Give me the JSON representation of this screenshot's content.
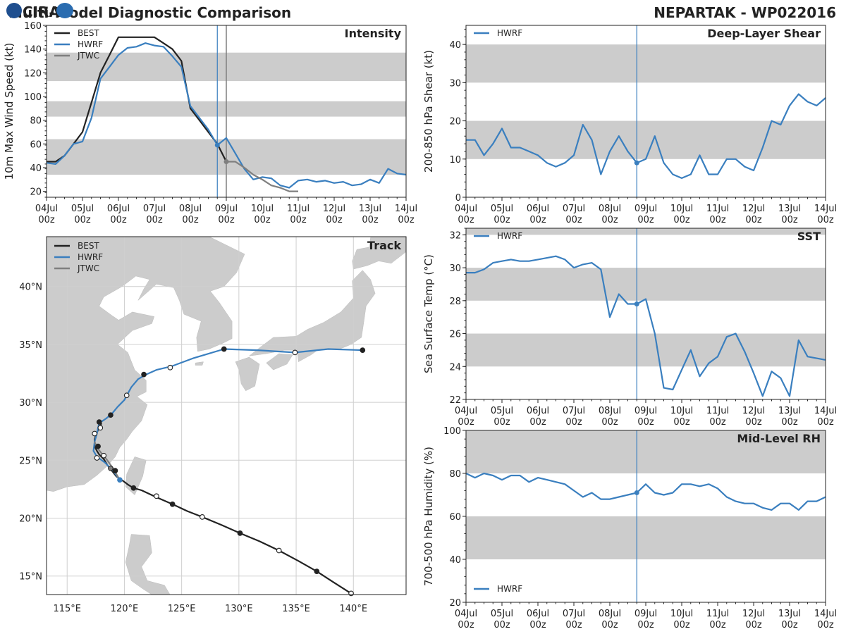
{
  "header": {
    "title_left": "Multi-Model Diagnostic Comparison",
    "title_right": "NEPARTAK - WP022016"
  },
  "logo": {
    "text": "CIRA"
  },
  "colors": {
    "best": "#222222",
    "hwrf": "#3a7fbf",
    "jtwc": "#7f7f7f",
    "band": "#cccccc",
    "grid": "#cfcfcf"
  },
  "time_axis": {
    "labels": [
      "04Jul\n00z",
      "05Jul\n00z",
      "06Jul\n00z",
      "07Jul\n00z",
      "08Jul\n00z",
      "09Jul\n00z",
      "10Jul\n00z",
      "11Jul\n00z",
      "12Jul\n00z",
      "13Jul\n00z",
      "14Jul\n00z"
    ],
    "range_days": [
      0,
      10
    ],
    "current_time_day": 4.75,
    "jtwc_time_day": 5.0
  },
  "chart_data": [
    {
      "id": "intensity",
      "type": "line",
      "title": "Intensity",
      "ylabel": "10m Max Wind Speed (kt)",
      "ylim": [
        15,
        160
      ],
      "yticks": [
        20,
        40,
        60,
        80,
        100,
        120,
        140,
        160
      ],
      "bands": [
        [
          34,
          64
        ],
        [
          83,
          96
        ],
        [
          113,
          137
        ]
      ],
      "legend": [
        "BEST",
        "HWRF",
        "JTWC"
      ],
      "series": [
        {
          "name": "BEST",
          "x": [
            0,
            0.25,
            0.5,
            0.75,
            1,
            1.25,
            1.5,
            1.75,
            2,
            2.25,
            2.5,
            2.75,
            3,
            3.25,
            3.5,
            3.75,
            4,
            4.25,
            4.5,
            4.75,
            5
          ],
          "y": [
            45,
            45,
            50,
            60,
            70,
            95,
            120,
            135,
            150,
            150,
            150,
            150,
            150,
            145,
            140,
            130,
            90,
            80,
            70,
            60,
            45
          ]
        },
        {
          "name": "HWRF",
          "x": [
            0,
            0.25,
            0.5,
            0.75,
            1,
            1.25,
            1.5,
            1.75,
            2,
            2.25,
            2.5,
            2.75,
            3,
            3.25,
            3.5,
            3.75,
            4,
            4.25,
            4.5,
            4.75,
            5,
            5.25,
            5.5,
            5.75,
            6,
            6.25,
            6.5,
            6.75,
            7,
            7.25,
            7.5,
            7.75,
            8,
            8.25,
            8.5,
            8.75,
            9,
            9.25,
            9.5,
            9.75,
            10
          ],
          "y": [
            44,
            43,
            50,
            60,
            62,
            82,
            115,
            125,
            135,
            141,
            142,
            145,
            143,
            142,
            134,
            125,
            92,
            82,
            72,
            59,
            65,
            52,
            39,
            30,
            32,
            31,
            25,
            23,
            29,
            30,
            28,
            29,
            27,
            28,
            25,
            26,
            30,
            27,
            39,
            35,
            34
          ]
        },
        {
          "name": "JTWC",
          "x": [
            5,
            5.25,
            5.5,
            5.75,
            6,
            6.25,
            6.5,
            6.75,
            7
          ],
          "y": [
            45,
            45,
            40,
            34,
            30,
            25,
            23,
            20,
            20
          ]
        }
      ]
    },
    {
      "id": "shear",
      "type": "line",
      "title": "Deep-Layer Shear",
      "ylabel": "200-850 hPa Shear (kt)",
      "ylim": [
        0,
        45
      ],
      "yticks": [
        0,
        10,
        20,
        30,
        40
      ],
      "bands": [
        [
          10,
          20
        ],
        [
          30,
          40
        ]
      ],
      "legend": [
        "HWRF"
      ],
      "series": [
        {
          "name": "HWRF",
          "x": [
            0,
            0.25,
            0.5,
            0.75,
            1,
            1.25,
            1.5,
            1.75,
            2,
            2.25,
            2.5,
            2.75,
            3,
            3.25,
            3.5,
            3.75,
            4,
            4.25,
            4.5,
            4.75,
            5,
            5.25,
            5.5,
            5.75,
            6,
            6.25,
            6.5,
            6.75,
            7,
            7.25,
            7.5,
            7.75,
            8,
            8.25,
            8.5,
            8.75,
            9,
            9.25,
            9.5,
            9.75,
            10
          ],
          "y": [
            15,
            15,
            11,
            14,
            18,
            13,
            13,
            12,
            11,
            9,
            8,
            9,
            11,
            19,
            15,
            6,
            12,
            16,
            12,
            9,
            10,
            16,
            9,
            6,
            5,
            6,
            11,
            6,
            6,
            10,
            10,
            8,
            7,
            13,
            20,
            19,
            24,
            27,
            25,
            24,
            26
          ]
        }
      ]
    },
    {
      "id": "sst",
      "type": "line",
      "title": "SST",
      "ylabel": "Sea Surface Temp (°C)",
      "ylim": [
        22,
        32.4
      ],
      "yticks": [
        22,
        24,
        26,
        28,
        30,
        32
      ],
      "bands": [
        [
          24,
          26
        ],
        [
          28,
          30
        ],
        [
          32,
          32.4
        ]
      ],
      "legend": [
        "HWRF"
      ],
      "series": [
        {
          "name": "HWRF",
          "x": [
            0,
            0.25,
            0.5,
            0.75,
            1,
            1.25,
            1.5,
            1.75,
            2,
            2.25,
            2.5,
            2.75,
            3,
            3.25,
            3.5,
            3.75,
            4,
            4.25,
            4.5,
            4.75,
            5,
            5.25,
            5.5,
            5.75,
            6,
            6.25,
            6.5,
            6.75,
            7,
            7.25,
            7.5,
            7.75,
            8,
            8.25,
            8.5,
            8.75,
            9,
            9.25,
            9.5,
            9.75,
            10
          ],
          "y": [
            29.7,
            29.7,
            29.9,
            30.3,
            30.4,
            30.5,
            30.4,
            30.4,
            30.5,
            30.6,
            30.7,
            30.5,
            30.0,
            30.2,
            30.3,
            29.9,
            27.0,
            28.4,
            27.8,
            27.8,
            28.1,
            26.0,
            22.7,
            22.6,
            23.8,
            25.0,
            23.4,
            24.2,
            24.6,
            25.8,
            26.0,
            24.9,
            23.6,
            22.2,
            23.7,
            23.3,
            22.2,
            25.6,
            24.6,
            24.5,
            24.4
          ]
        }
      ]
    },
    {
      "id": "rh",
      "type": "line",
      "title": "Mid-Level RH",
      "ylabel": "700-500 hPa Humidity (%)",
      "ylim": [
        20,
        100
      ],
      "yticks": [
        20,
        40,
        60,
        80,
        100
      ],
      "bands": [
        [
          40,
          60
        ],
        [
          80,
          100
        ]
      ],
      "legend": [
        "HWRF"
      ],
      "series": [
        {
          "name": "HWRF",
          "x": [
            0,
            0.25,
            0.5,
            0.75,
            1,
            1.25,
            1.5,
            1.75,
            2,
            2.25,
            2.5,
            2.75,
            3,
            3.25,
            3.5,
            3.75,
            4,
            4.25,
            4.5,
            4.75,
            5,
            5.25,
            5.5,
            5.75,
            6,
            6.25,
            6.5,
            6.75,
            7,
            7.25,
            7.5,
            7.75,
            8,
            8.25,
            8.5,
            8.75,
            9,
            9.25,
            9.5,
            9.75,
            10
          ],
          "y": [
            80,
            78,
            80,
            79,
            77,
            79,
            79,
            76,
            78,
            77,
            76,
            75,
            72,
            69,
            71,
            68,
            68,
            69,
            70,
            71,
            75,
            71,
            70,
            71,
            75,
            75,
            74,
            75,
            73,
            69,
            67,
            66,
            66,
            64,
            63,
            66,
            66,
            63,
            67,
            67,
            69
          ]
        }
      ]
    },
    {
      "id": "track",
      "type": "scatter",
      "title": "Track",
      "legend": [
        "BEST",
        "HWRF",
        "JTWC"
      ],
      "xlim": [
        113.2,
        144.6
      ],
      "ylim": [
        13.4,
        44.3
      ],
      "xticks": [
        115,
        120,
        125,
        130,
        135,
        140
      ],
      "xtick_labels": [
        "115°E",
        "120°E",
        "125°E",
        "130°E",
        "135°E",
        "140°E"
      ],
      "yticks": [
        15,
        20,
        25,
        30,
        35,
        40
      ],
      "ytick_labels": [
        "15°N",
        "20°N",
        "25°N",
        "30°N",
        "35°N",
        "40°N"
      ],
      "series": [
        {
          "name": "BEST",
          "lon": [
            139.8,
            138.2,
            136.8,
            135.2,
            133.5,
            131.8,
            130.1,
            128.5,
            126.8,
            125.5,
            124.2,
            122.8,
            121.5,
            120.8,
            120.3,
            119.9,
            119.3,
            118.9,
            118.5,
            118.2,
            117.8,
            117.6,
            117.4,
            117.4,
            117.6,
            117.8,
            118.0
          ],
          "lat": [
            13.5,
            14.5,
            15.4,
            16.3,
            17.2,
            18.0,
            18.7,
            19.4,
            20.1,
            20.6,
            21.2,
            21.8,
            22.4,
            22.6,
            22.9,
            23.2,
            23.6,
            24.1,
            24.6,
            25.1,
            25.5,
            25.8,
            26.2,
            26.8,
            27.4,
            27.8,
            28.2
          ],
          "markers": [
            [
              139.8,
              13.5,
              "open"
            ],
            [
              136.8,
              15.4,
              "filled"
            ],
            [
              133.5,
              17.2,
              "open"
            ],
            [
              130.1,
              18.7,
              "filled"
            ],
            [
              126.8,
              20.1,
              "open"
            ],
            [
              124.2,
              21.2,
              "filled"
            ],
            [
              122.8,
              21.9,
              "open"
            ],
            [
              120.8,
              22.6,
              "filled"
            ],
            [
              119.2,
              24.1,
              "filled"
            ],
            [
              117.7,
              26.2,
              "filled"
            ],
            [
              117.8,
              28.3,
              "filled"
            ],
            [
              118.8,
              28.9,
              "filled"
            ],
            [
              121.7,
              32.4,
              "filled"
            ],
            [
              128.7,
              34.6,
              "filled"
            ],
            [
              140.8,
              34.5,
              "filled"
            ]
          ]
        },
        {
          "name": "HWRF",
          "lon": [
            119.6,
            119.0,
            118.3,
            117.6,
            117.3,
            117.4,
            117.6,
            117.7,
            117.8,
            118.4,
            118.9,
            119.4,
            120.0,
            120.6,
            121.2,
            121.9,
            122.8,
            124.1,
            126.0,
            128.7,
            131.6,
            134.9,
            137.8,
            140.8
          ],
          "lat": [
            23.3,
            24.1,
            24.8,
            25.3,
            25.8,
            26.6,
            27.3,
            27.8,
            28.2,
            28.6,
            29.0,
            29.6,
            30.2,
            31.3,
            32.0,
            32.4,
            32.8,
            33.1,
            33.8,
            34.6,
            34.5,
            34.3,
            34.6,
            34.5
          ],
          "markers": [
            [
              119.6,
              23.3,
              "filled"
            ]
          ]
        },
        {
          "name": "JTWC",
          "lon": [
            119.6,
            119.0,
            118.5,
            118.0,
            117.6,
            117.4
          ],
          "lat": [
            23.3,
            24.3,
            25.0,
            25.6,
            26.1,
            26.6
          ],
          "markers": [
            [
              118.8,
              24.3,
              "filled"
            ],
            [
              118.2,
              25.4,
              "open"
            ],
            [
              117.6,
              25.2,
              "open"
            ],
            [
              117.4,
              27.3,
              "open"
            ],
            [
              117.9,
              27.8,
              "open"
            ],
            [
              120.2,
              30.6,
              "open"
            ],
            [
              124.0,
              33.0,
              "open"
            ],
            [
              134.9,
              34.3,
              "open"
            ]
          ]
        }
      ]
    }
  ]
}
